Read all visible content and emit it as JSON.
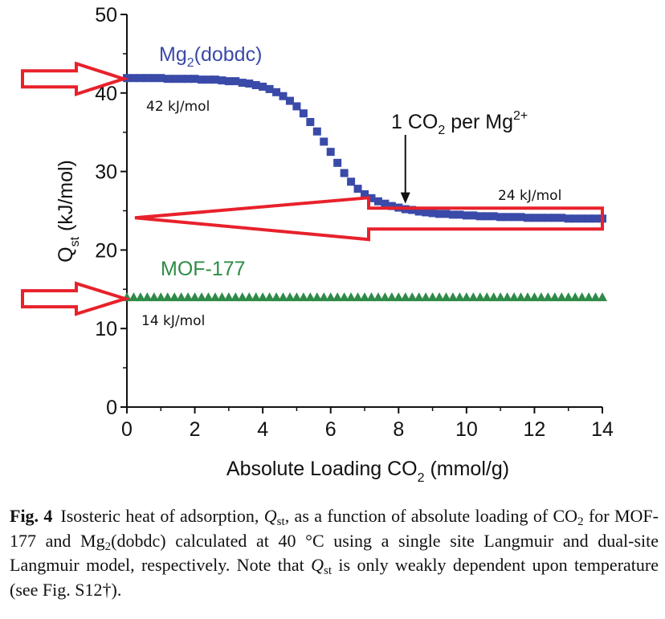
{
  "chart_data": {
    "type": "scatter",
    "xlabel": "Absolute Loading CO₂ (mmol/g)",
    "ylabel": "Qst (kJ/mol)",
    "xlim": [
      0,
      14
    ],
    "ylim": [
      0,
      50
    ],
    "xticks": [
      0,
      2,
      4,
      6,
      8,
      10,
      12,
      14
    ],
    "yticks": [
      0,
      10,
      20,
      30,
      40,
      50
    ],
    "series": [
      {
        "name": "Mg₂(dobdc)",
        "color": "#3a4aa8",
        "marker": "square",
        "x": [
          0.0,
          0.2,
          0.4,
          0.6,
          0.8,
          1.0,
          1.2,
          1.4,
          1.6,
          1.8,
          2.0,
          2.2,
          2.4,
          2.6,
          2.8,
          3.0,
          3.2,
          3.4,
          3.6,
          3.8,
          4.0,
          4.2,
          4.4,
          4.6,
          4.8,
          5.0,
          5.2,
          5.4,
          5.6,
          5.8,
          6.0,
          6.2,
          6.4,
          6.6,
          6.8,
          7.0,
          7.2,
          7.4,
          7.6,
          7.8,
          8.0,
          8.2,
          8.4,
          8.6,
          8.8,
          9.0,
          9.2,
          9.4,
          9.6,
          9.8,
          10.0,
          10.2,
          10.4,
          10.6,
          10.8,
          11.0,
          11.2,
          11.4,
          11.6,
          11.8,
          12.0,
          12.2,
          12.4,
          12.6,
          12.8,
          13.0,
          13.2,
          13.4,
          13.6,
          13.8,
          14.0
        ],
        "y": [
          41.9,
          41.9,
          41.9,
          41.9,
          41.9,
          41.9,
          41.8,
          41.8,
          41.8,
          41.8,
          41.8,
          41.7,
          41.7,
          41.7,
          41.6,
          41.5,
          41.5,
          41.3,
          41.2,
          41.0,
          40.8,
          40.5,
          40.1,
          39.6,
          39.0,
          38.3,
          37.4,
          36.3,
          35.1,
          33.8,
          32.5,
          31.1,
          29.8,
          28.7,
          27.8,
          27.1,
          26.6,
          26.2,
          25.9,
          25.6,
          25.4,
          25.2,
          25.1,
          24.9,
          24.8,
          24.7,
          24.6,
          24.6,
          24.5,
          24.5,
          24.4,
          24.4,
          24.3,
          24.3,
          24.3,
          24.2,
          24.2,
          24.2,
          24.2,
          24.1,
          24.1,
          24.1,
          24.1,
          24.1,
          24.1,
          24.0,
          24.0,
          24.0,
          24.0,
          24.0,
          24.0
        ]
      },
      {
        "name": "MOF-177",
        "color": "#2e8b47",
        "marker": "triangle",
        "x": [
          0.0,
          0.2,
          0.4,
          0.6,
          0.8,
          1.0,
          1.2,
          1.4,
          1.6,
          1.8,
          2.0,
          2.2,
          2.4,
          2.6,
          2.8,
          3.0,
          3.2,
          3.4,
          3.6,
          3.8,
          4.0,
          4.2,
          4.4,
          4.6,
          4.8,
          5.0,
          5.2,
          5.4,
          5.6,
          5.8,
          6.0,
          6.2,
          6.4,
          6.6,
          6.8,
          7.0,
          7.2,
          7.4,
          7.6,
          7.8,
          8.0,
          8.2,
          8.4,
          8.6,
          8.8,
          9.0,
          9.2,
          9.4,
          9.6,
          9.8,
          10.0,
          10.2,
          10.4,
          10.6,
          10.8,
          11.0,
          11.2,
          11.4,
          11.6,
          11.8,
          12.0,
          12.2,
          12.4,
          12.6,
          12.8,
          13.0,
          13.2,
          13.4,
          13.6,
          13.8,
          14.0
        ],
        "y": [
          14.0,
          14.0,
          14.0,
          14.0,
          14.0,
          14.0,
          14.0,
          14.0,
          14.0,
          14.0,
          14.0,
          14.0,
          14.0,
          14.0,
          14.0,
          14.0,
          14.0,
          14.0,
          14.0,
          14.0,
          14.0,
          14.0,
          14.0,
          14.0,
          14.0,
          14.0,
          14.0,
          14.0,
          14.0,
          14.0,
          14.0,
          14.0,
          14.0,
          14.0,
          14.0,
          14.0,
          14.0,
          14.0,
          14.0,
          14.0,
          14.0,
          14.0,
          14.0,
          14.0,
          14.0,
          14.0,
          14.0,
          14.0,
          14.0,
          14.0,
          14.0,
          14.0,
          14.0,
          14.0,
          14.0,
          14.0,
          14.0,
          14.0,
          14.0,
          14.0,
          14.0,
          14.0,
          14.0,
          14.0,
          14.0,
          14.0,
          14.0,
          14.0,
          14.0,
          14.0,
          14.0
        ]
      }
    ],
    "annotations": [
      {
        "text": "1 CO₂ per Mg²⁺",
        "x": 8.2,
        "y": 25.7,
        "type": "arrow-label"
      },
      {
        "text": "42 kJ/mol",
        "x": 0.0,
        "y": 41.9,
        "type": "value-label"
      },
      {
        "text": "24 kJ/mol",
        "x": 14.0,
        "y": 24.0,
        "type": "value-label"
      },
      {
        "text": "14 kJ/mol",
        "x": 0.0,
        "y": 14.0,
        "type": "value-label"
      }
    ],
    "highlight_arrow_color": "#e8212b",
    "grid": false,
    "legend": "inline labels"
  },
  "labels": {
    "series_mg": {
      "main": "Mg",
      "sub": "2",
      "rest": "(dobdc)"
    },
    "series_mof": "MOF-177",
    "annot_co2": {
      "pre": "1 CO",
      "sub": "2",
      "mid": " per Mg",
      "sup": "2+"
    },
    "xlabel": {
      "main": "Absolute Loading CO",
      "sub": "2",
      "rest": " (mmol/g)"
    },
    "ylabel": {
      "main": "Q",
      "sub": "st",
      "rest": " (kJ/mol)"
    },
    "val42": "42 kJ/mol",
    "val24": "24 kJ/mol",
    "val14": "14 kJ/mol"
  },
  "caption": {
    "fig": "Fig. 4",
    "t1": "Isosteric heat of adsorption, ",
    "q1": "Q",
    "q1sub": "st",
    "t2": ", as a function of absolute loading of CO",
    "t2sub": "2",
    "t3": " for MOF-177 and Mg",
    "t3sub": "2",
    "t4": "(dobdc) calculated at 40 °C using a single site Langmuir and dual-site Langmuir model, respectively. Note that ",
    "q2": "Q",
    "q2sub": "st",
    "t5": " is only weakly dependent upon temperature (see Fig. S12†)."
  }
}
